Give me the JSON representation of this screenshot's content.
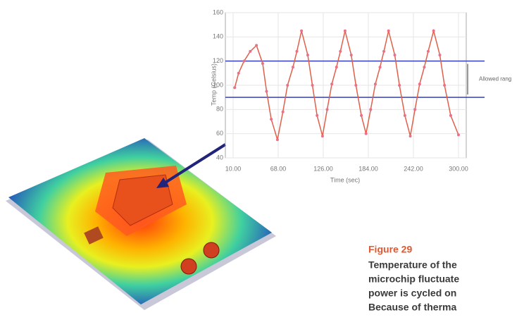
{
  "chart_data": {
    "type": "line",
    "x_label": "Time (sec)",
    "y_label": "Temp (Celsius)",
    "x": [
      12,
      17,
      24,
      32,
      40,
      48,
      53,
      59,
      67,
      74,
      80,
      87,
      92,
      98,
      106,
      112,
      118,
      125,
      131,
      137,
      143,
      148,
      154,
      162,
      168,
      175,
      181,
      187,
      193,
      199,
      204,
      210,
      218,
      224,
      231,
      238,
      244,
      250,
      256,
      261,
      268,
      276,
      282,
      290,
      300
    ],
    "series": [
      {
        "color": "#e0604a",
        "values": [
          98,
          110,
          120,
          128,
          133,
          118,
          95,
          72,
          55,
          78,
          100,
          115,
          128,
          145,
          125,
          100,
          75,
          58,
          80,
          101,
          115,
          128,
          145,
          125,
          100,
          75,
          60,
          80,
          101,
          115,
          128,
          145,
          125,
          100,
          75,
          58,
          80,
          101,
          115,
          128,
          145,
          125,
          100,
          75,
          59
        ]
      }
    ],
    "xlim": [
      0,
      310
    ],
    "xticks": [
      {
        "value": 10,
        "label": "10.00"
      },
      {
        "value": 68,
        "label": "68.00"
      },
      {
        "value": 126,
        "label": "126.00"
      },
      {
        "value": 184,
        "label": "184.00"
      },
      {
        "value": 242,
        "label": "242.00"
      },
      {
        "value": 300,
        "label": "300.00"
      }
    ],
    "ylim": [
      40,
      160
    ],
    "yticks": [
      40,
      60,
      80,
      100,
      120,
      140,
      160
    ],
    "grid": true,
    "reference_lines": {
      "values": [
        120,
        90
      ],
      "color": "#3a3fb0",
      "annotation": "Allowed rang"
    }
  },
  "caption": {
    "label": "Figure 29",
    "lines": [
      "Temperature of the",
      "microchip fluctuate",
      "power is cycled on",
      "Because of therma"
    ]
  }
}
